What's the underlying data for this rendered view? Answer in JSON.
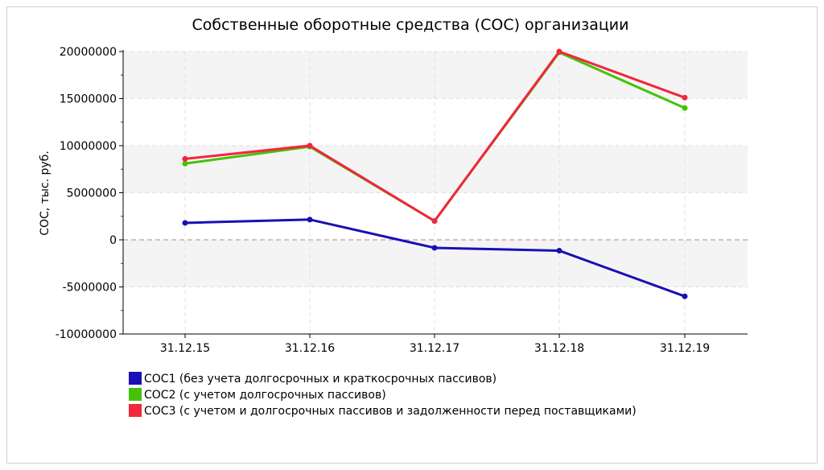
{
  "chart_data": {
    "type": "line",
    "title": "Собственные оборотные средства (СОС) организации",
    "xlabel": "",
    "ylabel": "СОС, тыс. руб.",
    "categories": [
      "31.12.15",
      "31.12.16",
      "31.12.17",
      "31.12.18",
      "31.12.19"
    ],
    "ylim": [
      -10000000,
      20000000
    ],
    "yticks": [
      20000000,
      15000000,
      10000000,
      5000000,
      0,
      -5000000,
      -10000000
    ],
    "ytick_labels": [
      "20000000",
      "15000000",
      "10000000",
      "5000000",
      "0",
      "-5000000",
      "-10000000"
    ],
    "grid": true,
    "legend_position": "bottom-left",
    "series": [
      {
        "name": "СОС1 (без учета долгосрочных и краткосрочных пассивов)",
        "color": "#1a0fb4",
        "values": [
          1800000,
          2150000,
          -850000,
          -1150000,
          -6000000
        ]
      },
      {
        "name": "СОС2 (с учетом долгосрочных пассивов)",
        "color": "#44c20a",
        "values": [
          8100000,
          9900000,
          2000000,
          19900000,
          14000000
        ]
      },
      {
        "name": "СОС3 (с учетом и долгосрочных пассивов и задолженности перед поставщиками)",
        "color": "#f2263d",
        "values": [
          8600000,
          10000000,
          2000000,
          20000000,
          15100000
        ]
      }
    ]
  }
}
